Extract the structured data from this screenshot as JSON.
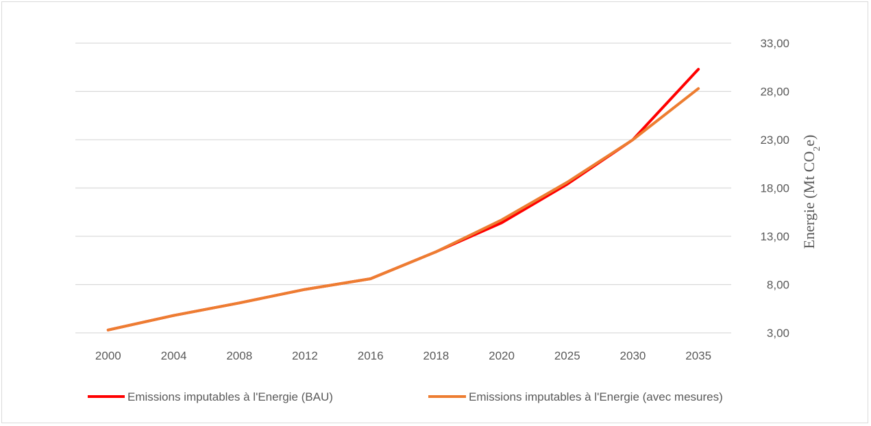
{
  "chart_data": {
    "type": "line",
    "categories": [
      "2000",
      "2004",
      "2008",
      "2012",
      "2016",
      "2018",
      "2020",
      "2025",
      "2030",
      "2035"
    ],
    "series": [
      {
        "name": "Emissions imputables à l'Energie (BAU)",
        "color": "#ff0000",
        "values": [
          3.3,
          4.8,
          6.1,
          7.5,
          8.6,
          11.4,
          14.4,
          18.4,
          23.0,
          30.3
        ]
      },
      {
        "name": "Emissions imputables à l'Energie (avec mesures)",
        "color": "#ed7d31",
        "values": [
          3.3,
          4.8,
          6.1,
          7.5,
          8.6,
          11.4,
          14.7,
          18.6,
          23.0,
          28.3
        ]
      }
    ],
    "yticks": [
      "33,00",
      "28,00",
      "23,00",
      "18,00",
      "13,00",
      "8,00",
      "3,00"
    ],
    "ytick_values": [
      33,
      28,
      23,
      18,
      13,
      8,
      3
    ],
    "ylim": [
      3,
      33
    ],
    "ylabel_main": "Energie (Mt CO",
    "ylabel_sub": "2",
    "ylabel_end": "e)",
    "y_axis_side": "right",
    "grid": true,
    "legend_position": "bottom"
  }
}
